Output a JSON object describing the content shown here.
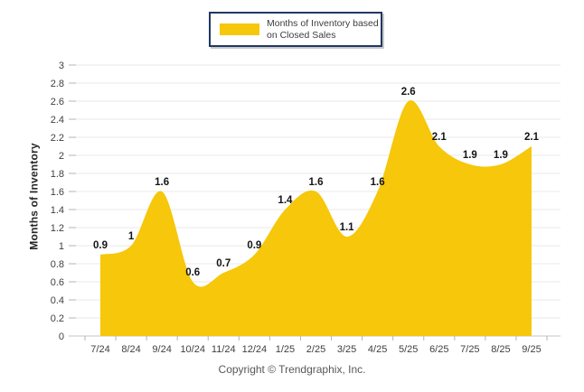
{
  "legend": {
    "line1": "Months of Inventory based",
    "line2": "on Closed Sales"
  },
  "y_axis_title": "Months of Inventory",
  "copyright": "Copyright © Trendgraphix, Inc.",
  "colors": {
    "area": "#F6C70A",
    "legend_border": "#1F3864",
    "gridline": "#EAEAEA",
    "tick": "#B5B5B5",
    "axis_line": "#C6C6C6",
    "axis_label": "#404040",
    "data_label": "#141414"
  },
  "chart_data": {
    "type": "area",
    "series_name": "Months of Inventory based on Closed Sales",
    "categories": [
      "7/24",
      "8/24",
      "9/24",
      "10/24",
      "11/24",
      "12/24",
      "1/25",
      "2/25",
      "3/25",
      "4/25",
      "5/25",
      "6/25",
      "7/25",
      "8/25",
      "9/25"
    ],
    "values": [
      0.9,
      1,
      1.6,
      0.6,
      0.7,
      0.9,
      1.4,
      1.6,
      1.1,
      1.6,
      2.6,
      2.1,
      1.9,
      1.9,
      2.1
    ],
    "point_labels": [
      "0.9",
      "1",
      "1.6",
      "0.6",
      "0.7",
      "0.9",
      "1.4",
      "1.6",
      "1.1",
      "1.6",
      "2.6",
      "2.1",
      "1.9",
      "1.9",
      "2.1"
    ],
    "title": "",
    "xlabel": "",
    "ylabel": "Months of Inventory",
    "ylim": [
      0,
      3
    ],
    "y_tick_step": 0.2,
    "grid": true,
    "smooth": true,
    "legend_position": "top-center"
  }
}
